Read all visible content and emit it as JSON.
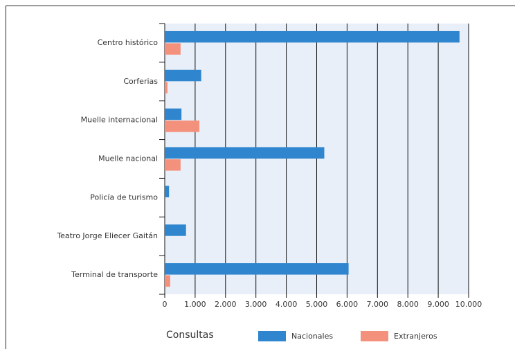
{
  "chart_data": {
    "type": "barh",
    "categories": [
      "Centro histórico",
      "Corferias",
      "Muelle internacional",
      "Muelle nacional",
      "Policía de turismo",
      "Teatro Jorge Eliecer Gaitán",
      "Terminal de transporte"
    ],
    "series": [
      {
        "name": "Nacionales",
        "color": "#2f86cf",
        "values": [
          9700,
          1200,
          550,
          5250,
          140,
          700,
          6050
        ]
      },
      {
        "name": "Extranjeros",
        "color": "#f4917c",
        "values": [
          520,
          90,
          1140,
          520,
          0,
          0,
          180
        ]
      }
    ],
    "legend_title": "Consultas",
    "xlim": [
      0,
      10000
    ],
    "xticks": [
      0,
      {
        "value": 1000,
        "label": "1.000"
      },
      {
        "value": 2000,
        "label": "2.000"
      },
      {
        "value": 3000,
        "label": "3.000"
      },
      {
        "value": 4000,
        "label": "4.000"
      },
      {
        "value": 5000,
        "label": "5.000"
      },
      {
        "value": 6000,
        "label": "6.000"
      },
      {
        "value": 7000,
        "label": "7.000"
      },
      {
        "value": 8000,
        "label": "8.000"
      },
      {
        "value": 9000,
        "label": "9.000"
      },
      {
        "value": 10000,
        "label": "10.000"
      }
    ],
    "grid": true,
    "legend": "bottom"
  }
}
